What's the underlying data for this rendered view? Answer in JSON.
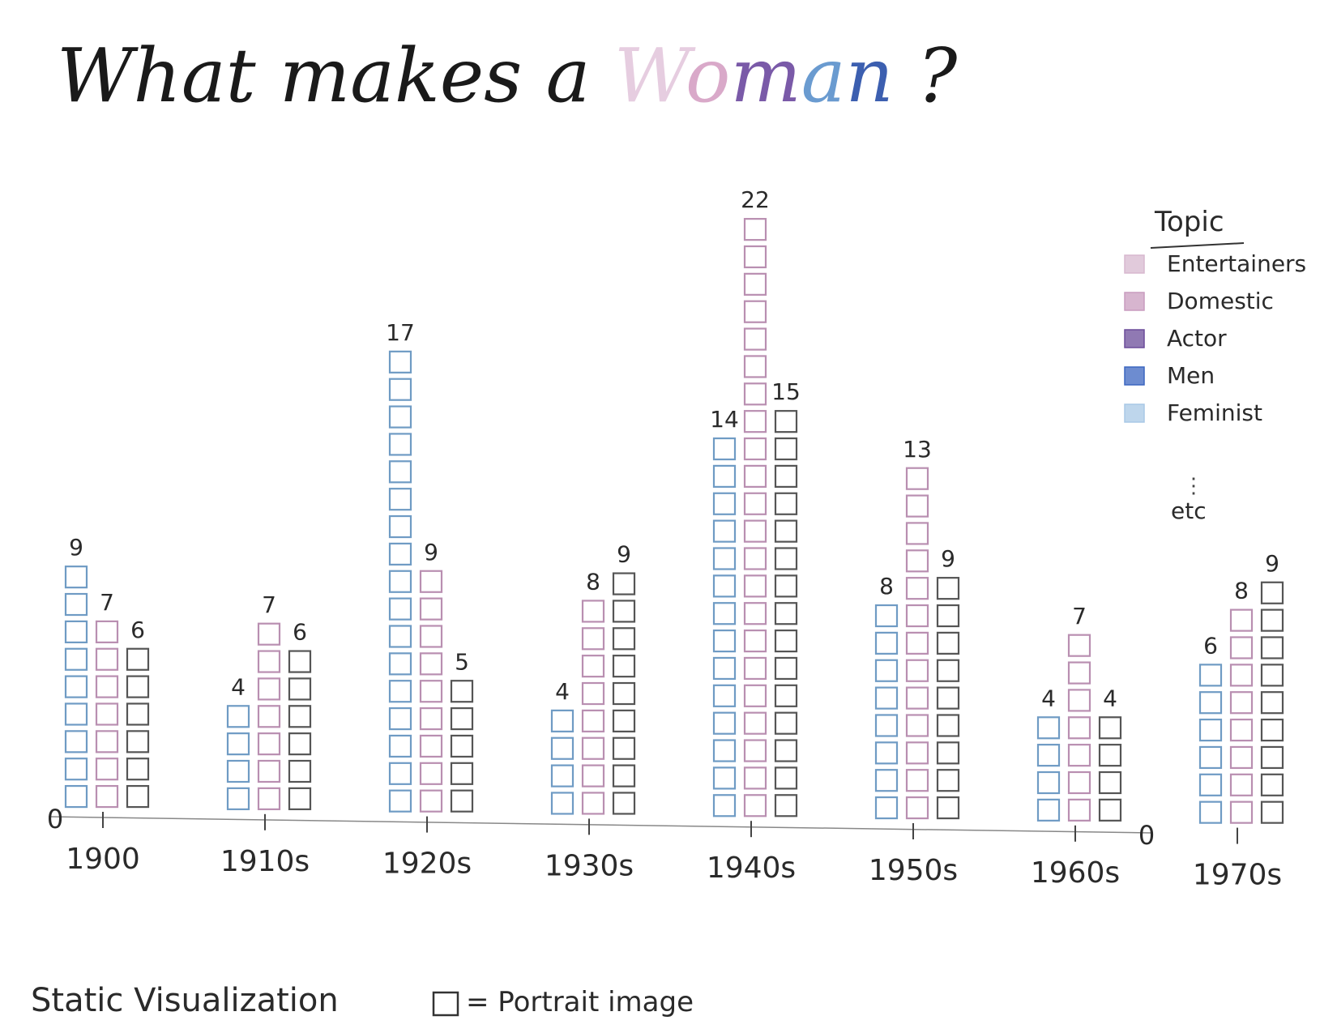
{
  "title": {
    "prefix": "What makes a ",
    "highlight_letters": [
      {
        "ch": "W",
        "color": "#e6cde0"
      },
      {
        "ch": "o",
        "color": "#d9a9c9"
      },
      {
        "ch": "m",
        "color": "#7a5aa8"
      },
      {
        "ch": "a",
        "color": "#6a9bd0"
      },
      {
        "ch": "n",
        "color": "#3c5fb0"
      }
    ],
    "suffix": " ?"
  },
  "legend": {
    "heading": "Topic",
    "items": [
      {
        "label": "Entertainers",
        "color": "#d7b8cf"
      },
      {
        "label": "Domestic",
        "color": "#c99cbf"
      },
      {
        "label": "Actor",
        "color": "#6b4c9a"
      },
      {
        "label": "Men",
        "color": "#3c66c0"
      },
      {
        "label": "Feminist",
        "color": "#a8c8e6"
      }
    ],
    "more_label": "etc"
  },
  "footer": {
    "caption": "Static Visualization",
    "icon_label": "= Portrait image"
  },
  "chart_data": {
    "type": "bar",
    "unit": "portrait images",
    "categories": [
      "1900",
      "1910s",
      "1920s",
      "1930s",
      "1940s",
      "1950s",
      "1960s",
      "1970s"
    ],
    "series": [
      {
        "color": "#6f9bc4",
        "values": [
          9,
          4,
          17,
          4,
          14,
          8,
          4,
          6
        ]
      },
      {
        "color": "#b98fb1",
        "values": [
          7,
          7,
          9,
          8,
          22,
          13,
          7,
          8
        ]
      },
      {
        "color": "#555555",
        "values": [
          6,
          6,
          5,
          9,
          15,
          9,
          4,
          9
        ]
      }
    ],
    "axis_zero_labels": [
      "0",
      "0"
    ],
    "ylim": [
      0,
      22
    ],
    "grid": false,
    "legend_position": "top-right"
  }
}
